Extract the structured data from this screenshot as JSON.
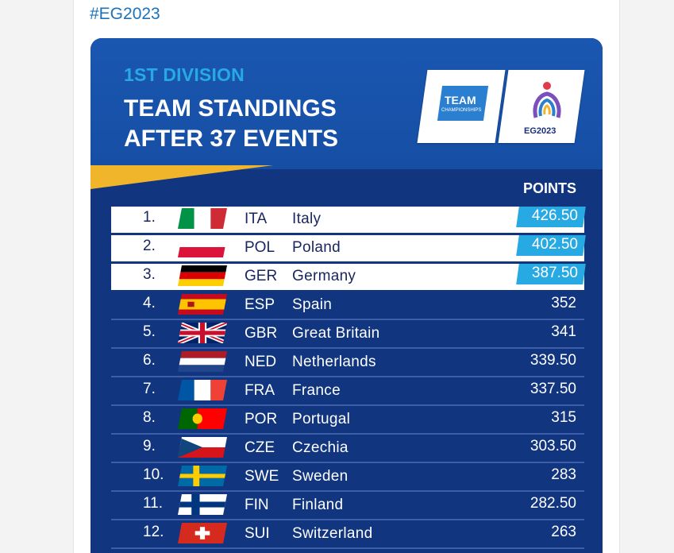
{
  "post": {
    "hashtag": "#EG2023"
  },
  "header": {
    "division": "1ST DIVISION",
    "title_line1": "TEAM STANDINGS",
    "title_line2": "AFTER 37 EVENTS",
    "logo_team_label": "TEAM",
    "logo_championships_label": "CHAMPIONSHIPS",
    "logo_eg_text": "EG2023"
  },
  "table": {
    "points_header": "POINTS",
    "rows": [
      {
        "rank": "1.",
        "code": "ITA",
        "name": "Italy",
        "points": "426.50",
        "highlight": true
      },
      {
        "rank": "2.",
        "code": "POL",
        "name": "Poland",
        "points": "402.50",
        "highlight": true
      },
      {
        "rank": "3.",
        "code": "GER",
        "name": "Germany",
        "points": "387.50",
        "highlight": true
      },
      {
        "rank": "4.",
        "code": "ESP",
        "name": "Spain",
        "points": "352"
      },
      {
        "rank": "5.",
        "code": "GBR",
        "name": "Great Britain",
        "points": "341"
      },
      {
        "rank": "6.",
        "code": "NED",
        "name": "Netherlands",
        "points": "339.50"
      },
      {
        "rank": "7.",
        "code": "FRA",
        "name": "France",
        "points": "337.50"
      },
      {
        "rank": "8.",
        "code": "POR",
        "name": "Portugal",
        "points": "315"
      },
      {
        "rank": "9.",
        "code": "CZE",
        "name": "Czechia",
        "points": "303.50"
      },
      {
        "rank": "10.",
        "code": "SWE",
        "name": "Sweden",
        "points": "283"
      },
      {
        "rank": "11.",
        "code": "FIN",
        "name": "Finland",
        "points": "282.50"
      },
      {
        "rank": "12.",
        "code": "SUI",
        "name": "Switzerland",
        "points": "263"
      }
    ]
  },
  "colors": {
    "card_dark": "#12357f",
    "header_blue": "#1a57b1",
    "accent_cyan": "#27a9e4",
    "accent_yellow": "#f0b52b"
  }
}
